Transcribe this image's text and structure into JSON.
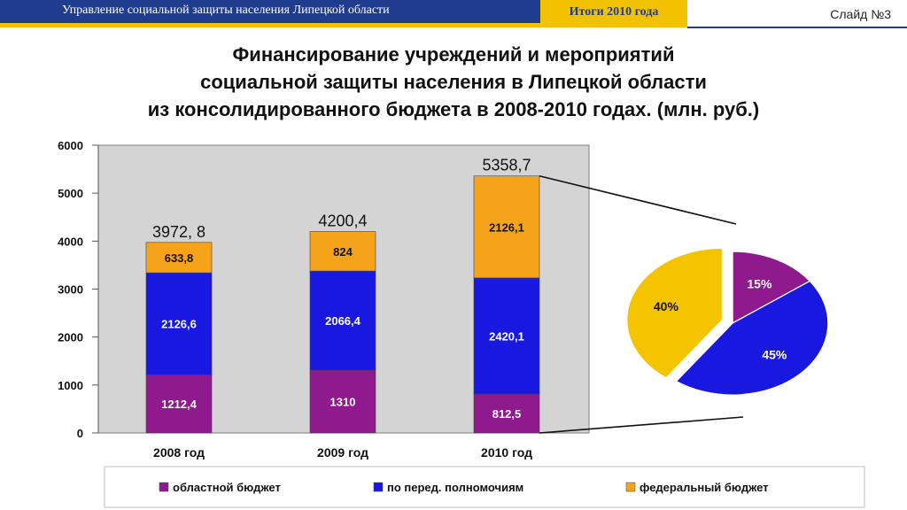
{
  "header": {
    "org": "Управление социальной защиты населения Липецкой области",
    "period": "Итоги 2010 года",
    "slide": "Слайд №3"
  },
  "title_lines": [
    "Финансирование учреждений и мероприятий",
    "социальной защиты населения в Липецкой области",
    "из консолидированного бюджета в 2008-2010 годах. (млн. руб.)"
  ],
  "colors": {
    "regional": "#8e1a8e",
    "delegated": "#1818e0",
    "federal": "#f5a31a",
    "pie_federal": "#f5c400",
    "plot_bg": "#d4d4d4"
  },
  "chart_data": [
    {
      "type": "bar",
      "stacked": true,
      "categories": [
        "2008 год",
        "2009 год",
        "2010 год"
      ],
      "ylim": [
        0,
        6000
      ],
      "yticks": [
        0,
        1000,
        2000,
        3000,
        4000,
        5000,
        6000
      ],
      "series": [
        {
          "name": "областной бюджет",
          "values": [
            1212.4,
            1310,
            812.5
          ],
          "labels": [
            "1212,4",
            "1310",
            "812,5"
          ]
        },
        {
          "name": "по перед. полномочиям",
          "values": [
            2126.6,
            2066.4,
            2420.1
          ],
          "labels": [
            "2126,6",
            "2066,4",
            "2420,1"
          ]
        },
        {
          "name": "федеральный бюджет",
          "values": [
            633.8,
            824,
            2126.1
          ],
          "labels": [
            "633,8",
            "824",
            "2126,1"
          ]
        }
      ],
      "totals": [
        "3972, 8",
        "4200,4",
        "5358,7"
      ],
      "legend": "bottom"
    },
    {
      "type": "pie",
      "slices": [
        {
          "value": 15,
          "label": "15%"
        },
        {
          "value": 45,
          "label": "45%"
        },
        {
          "value": 40,
          "label": "40%"
        }
      ]
    }
  ]
}
